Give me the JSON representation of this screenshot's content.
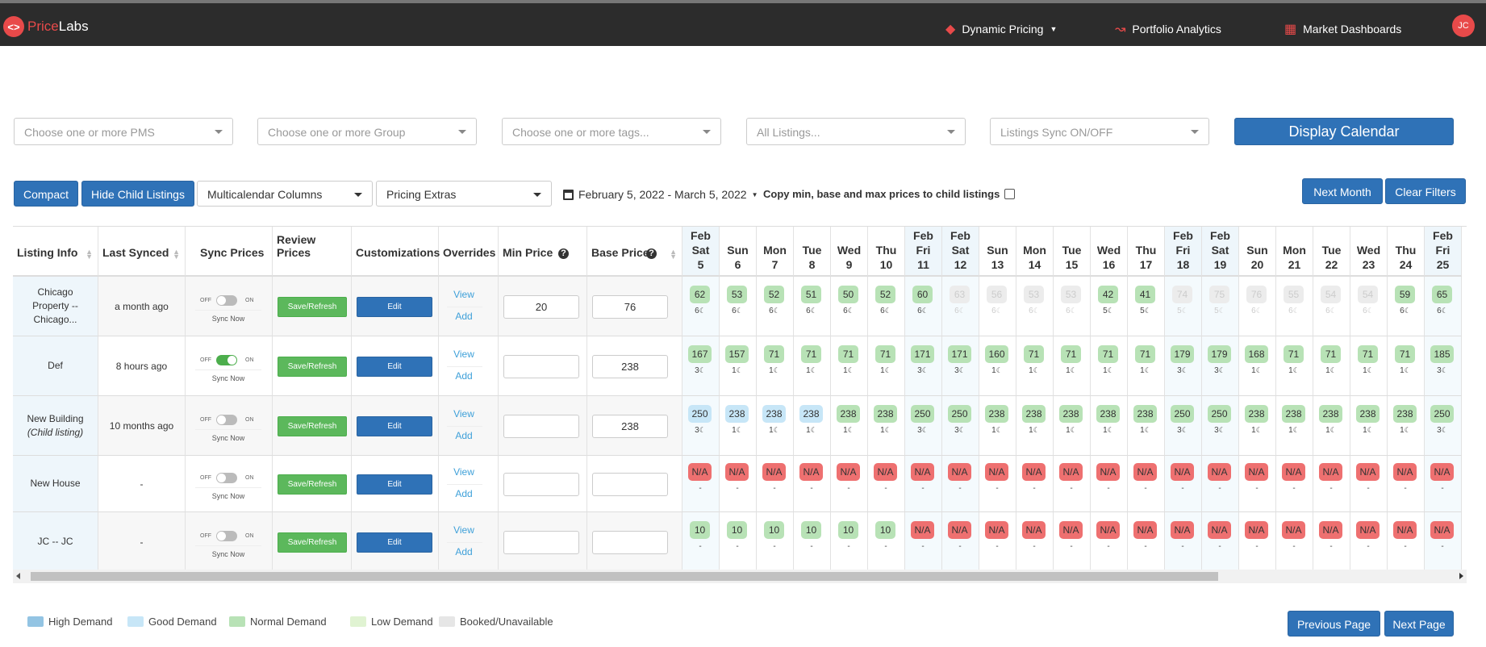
{
  "app": {
    "logo_badge": "<>",
    "logo_part1": "Price",
    "logo_part2": "Labs",
    "nav": [
      {
        "label": "Dynamic Pricing",
        "icon": "flame-icon"
      },
      {
        "label": "Portfolio Analytics",
        "icon": "trend-icon"
      },
      {
        "label": "Market Dashboards",
        "icon": "dashboard-icon"
      }
    ],
    "avatar": "JC"
  },
  "filters": {
    "pms": "Choose one or more PMS",
    "group": "Choose one or more Group",
    "tags": "Choose one or more tags...",
    "listings": "All Listings...",
    "sync": "Listings Sync ON/OFF",
    "display_calendar": "Display Calendar"
  },
  "toolbar": {
    "compact": "Compact",
    "hide_child": "Hide Child Listings",
    "multicalendar": "Multicalendar Columns",
    "pricing_extras": "Pricing Extras",
    "date_range": "February 5, 2022 - March 5, 2022",
    "copy_label": "Copy min, base and max prices to child listings",
    "next_month": "Next Month",
    "clear_filters": "Clear Filters"
  },
  "table": {
    "headers": {
      "listing_info": "Listing Info",
      "last_synced": "Last Synced",
      "sync_prices": "Sync Prices",
      "review_prices": "Review Prices",
      "customizations": "Customizations",
      "overrides": "Overrides",
      "min_price": "Min Price",
      "base_price": "Base Price"
    },
    "labels": {
      "off": "OFF",
      "on": "ON",
      "sync_now": "Sync Now",
      "save_refresh": "Save/Refresh",
      "edit": "Edit",
      "view": "View",
      "add": "Add"
    },
    "dates": [
      {
        "month": "Feb",
        "dow": "Sat",
        "day": "5",
        "wk": true
      },
      {
        "month": "",
        "dow": "Sun",
        "day": "6",
        "wk": false
      },
      {
        "month": "",
        "dow": "Mon",
        "day": "7",
        "wk": false
      },
      {
        "month": "",
        "dow": "Tue",
        "day": "8",
        "wk": false
      },
      {
        "month": "",
        "dow": "Wed",
        "day": "9",
        "wk": false
      },
      {
        "month": "",
        "dow": "Thu",
        "day": "10",
        "wk": false
      },
      {
        "month": "Feb",
        "dow": "Fri",
        "day": "11",
        "wk": true
      },
      {
        "month": "Feb",
        "dow": "Sat",
        "day": "12",
        "wk": true
      },
      {
        "month": "",
        "dow": "Sun",
        "day": "13",
        "wk": false
      },
      {
        "month": "",
        "dow": "Mon",
        "day": "14",
        "wk": false
      },
      {
        "month": "",
        "dow": "Tue",
        "day": "15",
        "wk": false
      },
      {
        "month": "",
        "dow": "Wed",
        "day": "16",
        "wk": false
      },
      {
        "month": "",
        "dow": "Thu",
        "day": "17",
        "wk": false
      },
      {
        "month": "Feb",
        "dow": "Fri",
        "day": "18",
        "wk": true
      },
      {
        "month": "Feb",
        "dow": "Sat",
        "day": "19",
        "wk": true
      },
      {
        "month": "",
        "dow": "Sun",
        "day": "20",
        "wk": false
      },
      {
        "month": "",
        "dow": "Mon",
        "day": "21",
        "wk": false
      },
      {
        "month": "",
        "dow": "Tue",
        "day": "22",
        "wk": false
      },
      {
        "month": "",
        "dow": "Wed",
        "day": "23",
        "wk": false
      },
      {
        "month": "",
        "dow": "Thu",
        "day": "24",
        "wk": false
      },
      {
        "month": "Feb",
        "dow": "Fri",
        "day": "25",
        "wk": true
      }
    ],
    "rows": [
      {
        "name_lines": [
          "Chicago",
          "Property --",
          "Chicago..."
        ],
        "child": "",
        "last_synced": "a month ago",
        "sync_on": false,
        "min": "20",
        "base": "76",
        "prices": [
          [
            "62",
            "6",
            "normal"
          ],
          [
            "53",
            "6",
            "normal"
          ],
          [
            "52",
            "6",
            "normal"
          ],
          [
            "51",
            "6",
            "normal"
          ],
          [
            "50",
            "6",
            "normal"
          ],
          [
            "52",
            "6",
            "normal"
          ],
          [
            "60",
            "6",
            "normal"
          ],
          [
            "63",
            "6",
            "booked"
          ],
          [
            "56",
            "6",
            "booked"
          ],
          [
            "53",
            "6",
            "booked"
          ],
          [
            "53",
            "6",
            "booked"
          ],
          [
            "42",
            "5",
            "normal"
          ],
          [
            "41",
            "5",
            "normal"
          ],
          [
            "74",
            "5",
            "booked"
          ],
          [
            "75",
            "5",
            "booked"
          ],
          [
            "76",
            "6",
            "booked"
          ],
          [
            "55",
            "6",
            "booked"
          ],
          [
            "54",
            "6",
            "booked"
          ],
          [
            "54",
            "6",
            "booked"
          ],
          [
            "59",
            "6",
            "normal"
          ],
          [
            "65",
            "6",
            "normal"
          ]
        ]
      },
      {
        "name_lines": [
          "Def"
        ],
        "child": "",
        "last_synced": "8 hours ago",
        "sync_on": true,
        "min": "",
        "base": "238",
        "prices": [
          [
            "167",
            "3",
            "normal"
          ],
          [
            "157",
            "1",
            "normal"
          ],
          [
            "71",
            "1",
            "normal"
          ],
          [
            "71",
            "1",
            "normal"
          ],
          [
            "71",
            "1",
            "normal"
          ],
          [
            "71",
            "1",
            "normal"
          ],
          [
            "171",
            "3",
            "normal"
          ],
          [
            "171",
            "3",
            "normal"
          ],
          [
            "160",
            "1",
            "normal"
          ],
          [
            "71",
            "1",
            "normal"
          ],
          [
            "71",
            "1",
            "normal"
          ],
          [
            "71",
            "1",
            "normal"
          ],
          [
            "71",
            "1",
            "normal"
          ],
          [
            "179",
            "3",
            "normal"
          ],
          [
            "179",
            "3",
            "normal"
          ],
          [
            "168",
            "1",
            "normal"
          ],
          [
            "71",
            "1",
            "normal"
          ],
          [
            "71",
            "1",
            "normal"
          ],
          [
            "71",
            "1",
            "normal"
          ],
          [
            "71",
            "1",
            "normal"
          ],
          [
            "185",
            "3",
            "normal"
          ]
        ]
      },
      {
        "name_lines": [
          "New Building"
        ],
        "child": "(Child listing)",
        "last_synced": "10 months ago",
        "sync_on": false,
        "min": "",
        "base": "238",
        "prices": [
          [
            "250",
            "3",
            "good"
          ],
          [
            "238",
            "1",
            "good"
          ],
          [
            "238",
            "1",
            "good"
          ],
          [
            "238",
            "1",
            "good"
          ],
          [
            "238",
            "1",
            "normal"
          ],
          [
            "238",
            "1",
            "normal"
          ],
          [
            "250",
            "3",
            "normal"
          ],
          [
            "250",
            "3",
            "normal"
          ],
          [
            "238",
            "1",
            "normal"
          ],
          [
            "238",
            "1",
            "normal"
          ],
          [
            "238",
            "1",
            "normal"
          ],
          [
            "238",
            "1",
            "normal"
          ],
          [
            "238",
            "1",
            "normal"
          ],
          [
            "250",
            "3",
            "normal"
          ],
          [
            "250",
            "3",
            "normal"
          ],
          [
            "238",
            "1",
            "normal"
          ],
          [
            "238",
            "1",
            "normal"
          ],
          [
            "238",
            "1",
            "normal"
          ],
          [
            "238",
            "1",
            "normal"
          ],
          [
            "238",
            "1",
            "normal"
          ],
          [
            "250",
            "3",
            "normal"
          ]
        ]
      },
      {
        "name_lines": [
          "New House"
        ],
        "child": "",
        "last_synced": "-",
        "sync_on": false,
        "min": "",
        "base": "",
        "prices": [
          [
            "N/A",
            "-",
            "na"
          ],
          [
            "N/A",
            "-",
            "na"
          ],
          [
            "N/A",
            "-",
            "na"
          ],
          [
            "N/A",
            "-",
            "na"
          ],
          [
            "N/A",
            "-",
            "na"
          ],
          [
            "N/A",
            "-",
            "na"
          ],
          [
            "N/A",
            "-",
            "na"
          ],
          [
            "N/A",
            "-",
            "na"
          ],
          [
            "N/A",
            "-",
            "na"
          ],
          [
            "N/A",
            "-",
            "na"
          ],
          [
            "N/A",
            "-",
            "na"
          ],
          [
            "N/A",
            "-",
            "na"
          ],
          [
            "N/A",
            "-",
            "na"
          ],
          [
            "N/A",
            "-",
            "na"
          ],
          [
            "N/A",
            "-",
            "na"
          ],
          [
            "N/A",
            "-",
            "na"
          ],
          [
            "N/A",
            "-",
            "na"
          ],
          [
            "N/A",
            "-",
            "na"
          ],
          [
            "N/A",
            "-",
            "na"
          ],
          [
            "N/A",
            "-",
            "na"
          ],
          [
            "N/A",
            "-",
            "na"
          ]
        ]
      },
      {
        "name_lines": [
          "JC -- JC"
        ],
        "child": "",
        "last_synced": "-",
        "sync_on": false,
        "min": "",
        "base": "",
        "prices": [
          [
            "10",
            "-",
            "normal"
          ],
          [
            "10",
            "-",
            "normal"
          ],
          [
            "10",
            "-",
            "normal"
          ],
          [
            "10",
            "-",
            "normal"
          ],
          [
            "10",
            "-",
            "normal"
          ],
          [
            "10",
            "-",
            "normal"
          ],
          [
            "N/A",
            "-",
            "na"
          ],
          [
            "N/A",
            "-",
            "na"
          ],
          [
            "N/A",
            "-",
            "na"
          ],
          [
            "N/A",
            "-",
            "na"
          ],
          [
            "N/A",
            "-",
            "na"
          ],
          [
            "N/A",
            "-",
            "na"
          ],
          [
            "N/A",
            "-",
            "na"
          ],
          [
            "N/A",
            "-",
            "na"
          ],
          [
            "N/A",
            "-",
            "na"
          ],
          [
            "N/A",
            "-",
            "na"
          ],
          [
            "N/A",
            "-",
            "na"
          ],
          [
            "N/A",
            "-",
            "na"
          ],
          [
            "N/A",
            "-",
            "na"
          ],
          [
            "N/A",
            "-",
            "na"
          ],
          [
            "N/A",
            "-",
            "na"
          ]
        ]
      }
    ]
  },
  "legend": [
    {
      "label": "High Demand",
      "color": "#93c4e3"
    },
    {
      "label": "Good Demand",
      "color": "#c7e6f7"
    },
    {
      "label": "Normal Demand",
      "color": "#b8e2b6"
    },
    {
      "label": "Low Demand",
      "color": "#e0f3d2"
    },
    {
      "label": "Booked/Unavailable",
      "color": "#e6e6e6"
    }
  ],
  "pager": {
    "previous": "Previous Page",
    "next": "Next Page"
  }
}
